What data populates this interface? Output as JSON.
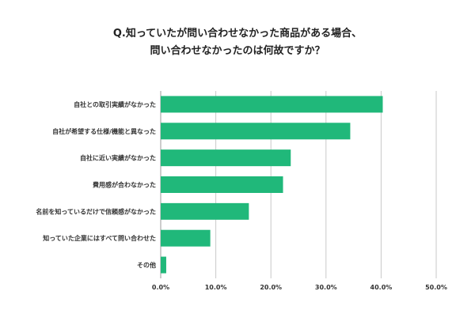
{
  "chart_data": {
    "type": "bar",
    "orientation": "horizontal",
    "title_lines": [
      "Q.知っていたが問い合わせなかった商品がある場合、",
      "問い合わせなかったのは何故ですか？"
    ],
    "categories": [
      "自社との取引実績がなかった",
      "自社が希望する仕様/機能と異なった",
      "自社に近い実績がなかった",
      "費用感が合わなかった",
      "名前を知っているだけで信頼感がなかった",
      "知っていた企業にはすべて問い合わせた",
      "その他"
    ],
    "values": [
      40.3,
      34.4,
      23.6,
      22.2,
      16.0,
      9.0,
      1.0
    ],
    "unit": "%",
    "xlim": [
      0,
      50
    ],
    "x_ticks": [
      "0.0%",
      "10.0%",
      "20.0%",
      "30.0%",
      "40.0%",
      "50.0%"
    ],
    "grid": "vertical",
    "bar_color": "#20b87a",
    "legend": "none"
  }
}
